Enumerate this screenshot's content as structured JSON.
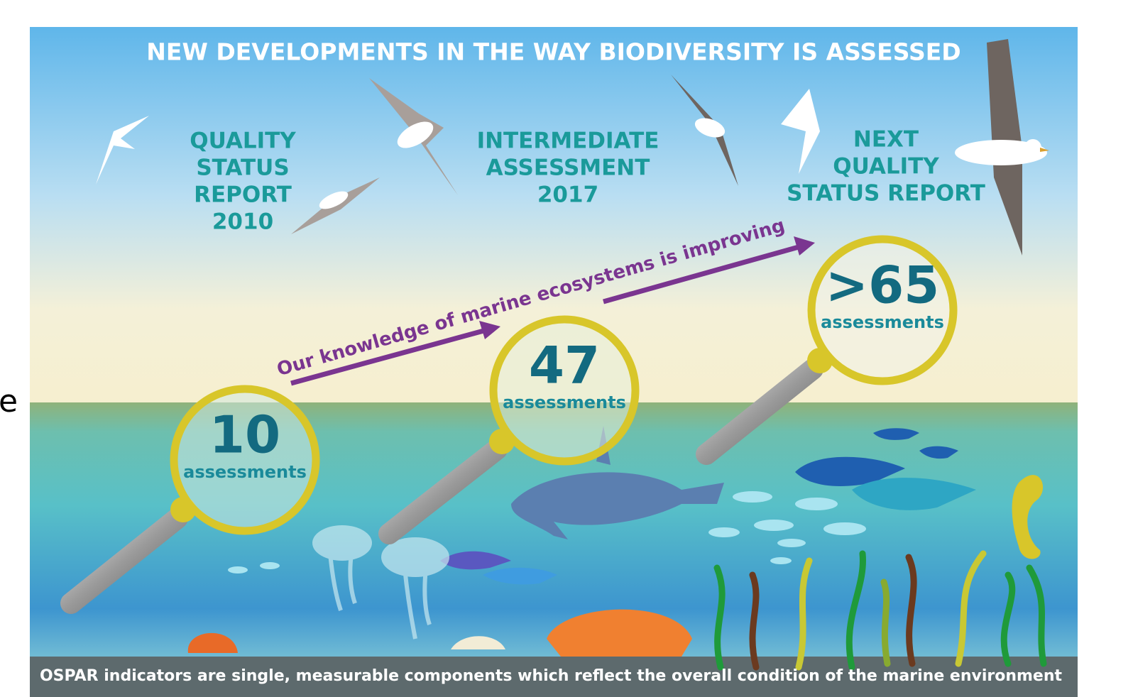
{
  "edge_fragment": "e",
  "header": {
    "title": "NEW DEVELOPMENTS IN THE WAY BIODIVERSITY IS ASSESSED"
  },
  "stages": [
    {
      "label": [
        "QUALITY",
        "STATUS",
        "REPORT",
        "2010"
      ],
      "number": "10",
      "unit": "assessments"
    },
    {
      "label": [
        "INTERMEDIATE",
        "ASSESSMENT",
        "2017"
      ],
      "number": "47",
      "unit": "assessments"
    },
    {
      "label": [
        "NEXT",
        "QUALITY",
        "STATUS REPORT"
      ],
      "number": ">65",
      "unit": "assessments"
    }
  ],
  "arrow_text": "Our knowledge of marine ecosystems is improving",
  "footer": "OSPAR indicators are single, measurable components which reflect the overall condition of the marine environment"
}
